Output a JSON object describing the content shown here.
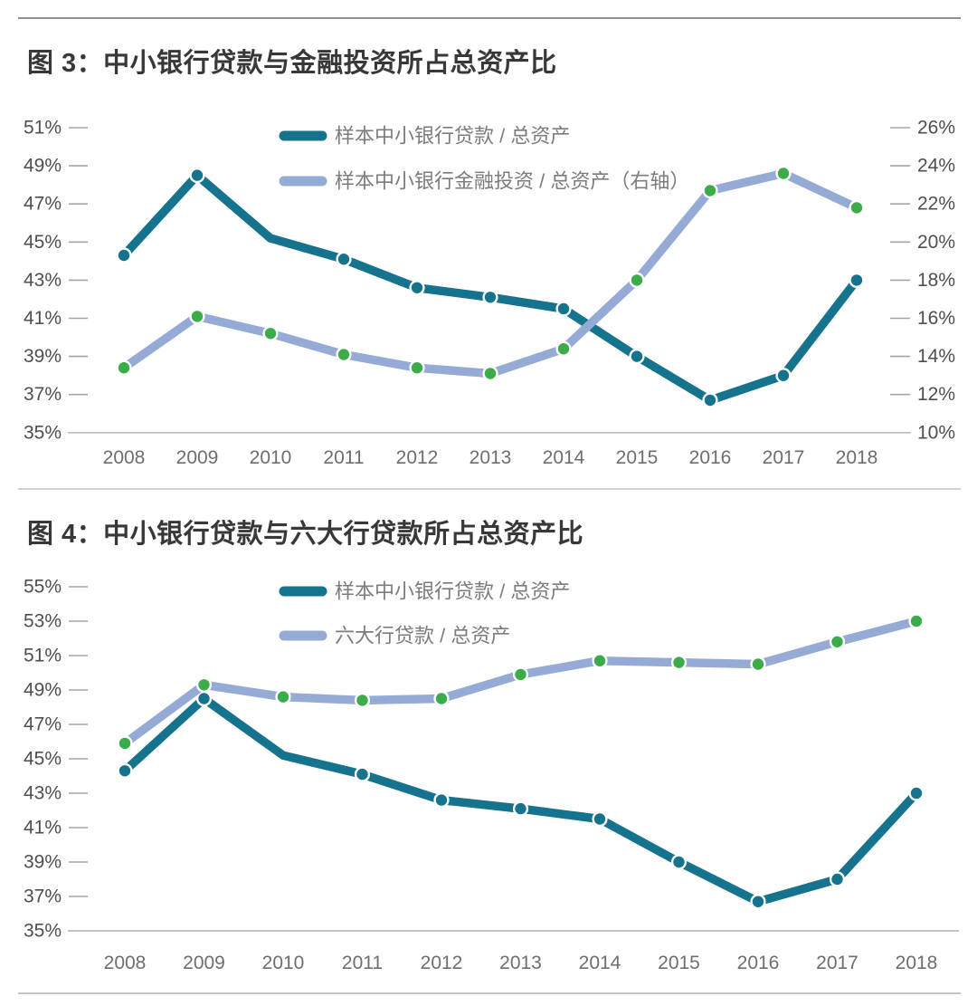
{
  "page": {
    "figure3_title": "图 3：中小银行贷款与金融投资所占总资产比",
    "figure4_title": "图 4：中小银行贷款与六大行贷款所占总资产比"
  },
  "style": {
    "teal": "#15738d",
    "periwinkle": "#95abd6",
    "marker_green": "#3cab49",
    "marker_ring": "#ffffff",
    "axis_text": "#4f4f4f",
    "year_text": "#6e6e6e",
    "legend_text": "#7c7c7c",
    "title_text": "#383838",
    "tick_dash": "#a5a5a5",
    "axis_line": "#bdbdbd"
  },
  "chart_data": [
    {
      "type": "line",
      "title": "图 3：中小银行贷款与金融投资所占总资产比",
      "categories": [
        "2008",
        "2009",
        "2010",
        "2011",
        "2012",
        "2013",
        "2014",
        "2015",
        "2016",
        "2017",
        "2018"
      ],
      "left_axis": {
        "min": 35,
        "max": 51,
        "tick_step": 2,
        "ticks": [
          "51%",
          "49%",
          "47%",
          "45%",
          "43%",
          "41%",
          "39%",
          "37%",
          "35%"
        ]
      },
      "right_axis": {
        "min": 10,
        "max": 26,
        "tick_step": 2,
        "ticks": [
          "26%",
          "24%",
          "22%",
          "20%",
          "18%",
          "16%",
          "14%",
          "12%",
          "10%"
        ]
      },
      "legend_position": "top-center",
      "grid": false,
      "series": [
        {
          "name": "样本中小银行贷款 / 总资产",
          "axis": "left",
          "line_color": "#15738d",
          "marker_color": "#15738d",
          "no_marker_years": [
            "2010"
          ],
          "values": [
            44.3,
            48.5,
            45.2,
            44.1,
            42.6,
            42.1,
            41.5,
            39.0,
            36.7,
            38.0,
            43.0
          ]
        },
        {
          "name": "样本中小银行金融投资 / 总资产（右轴）",
          "axis": "right",
          "line_color": "#95abd6",
          "marker_color": "#3cab49",
          "no_marker_years": [],
          "values": [
            13.4,
            16.1,
            15.2,
            14.1,
            13.4,
            13.1,
            14.4,
            18.0,
            22.7,
            23.6,
            21.8
          ]
        }
      ]
    },
    {
      "type": "line",
      "title": "图 4：中小银行贷款与六大行贷款所占总资产比",
      "categories": [
        "2008",
        "2009",
        "2010",
        "2011",
        "2012",
        "2013",
        "2014",
        "2015",
        "2016",
        "2017",
        "2018"
      ],
      "left_axis": {
        "min": 35,
        "max": 55,
        "tick_step": 2,
        "ticks": [
          "55%",
          "53%",
          "51%",
          "49%",
          "47%",
          "45%",
          "43%",
          "41%",
          "39%",
          "37%",
          "35%"
        ]
      },
      "right_axis": null,
      "legend_position": "top-center",
      "grid": false,
      "series": [
        {
          "name": "样本中小银行贷款 / 总资产",
          "axis": "left",
          "line_color": "#15738d",
          "marker_color": "#15738d",
          "no_marker_years": [
            "2010"
          ],
          "values": [
            44.3,
            48.5,
            45.2,
            44.1,
            42.6,
            42.1,
            41.5,
            39.0,
            36.7,
            38.0,
            43.0
          ]
        },
        {
          "name": "六大行贷款 / 总资产",
          "axis": "left",
          "line_color": "#95abd6",
          "marker_color": "#3cab49",
          "no_marker_years": [],
          "values": [
            45.9,
            49.3,
            48.6,
            48.4,
            48.5,
            49.9,
            50.7,
            50.6,
            50.5,
            51.8,
            53.0
          ]
        }
      ]
    }
  ]
}
